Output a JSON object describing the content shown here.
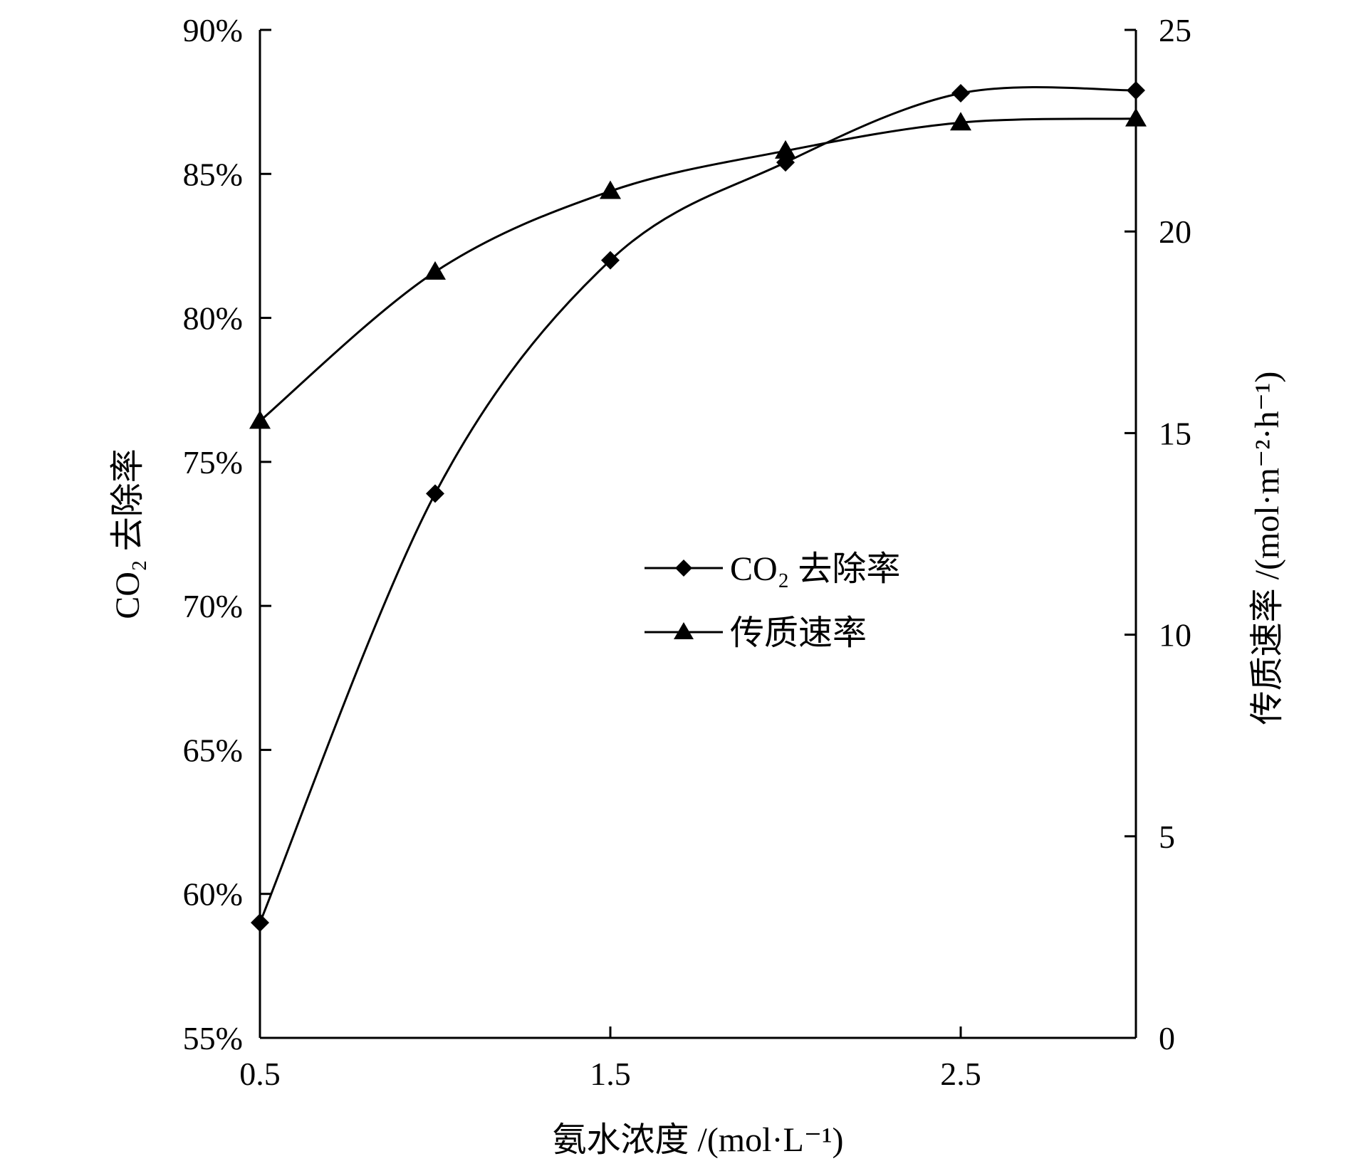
{
  "chart_data": {
    "type": "line",
    "x": [
      0.5,
      1.0,
      1.5,
      2.0,
      2.5,
      3.0
    ],
    "xlim": [
      0.5,
      3.0
    ],
    "x_ticks": [
      "0.5",
      "1.5",
      "2.5"
    ],
    "x_tick_values": [
      0.5,
      1.5,
      2.5
    ],
    "xlabel": "氨水浓度 /(mol·L⁻¹)",
    "ylabel_left": "CO₂ 去除率",
    "ylabel_right": "传质速率 /(mol·m⁻²·h⁻¹)",
    "ylim_left": [
      55,
      90
    ],
    "ylim_right": [
      0,
      25
    ],
    "y_ticks_left": [
      "55%",
      "60%",
      "65%",
      "70%",
      "75%",
      "80%",
      "85%",
      "90%"
    ],
    "y_tick_values_left": [
      55,
      60,
      65,
      70,
      75,
      80,
      85,
      90
    ],
    "y_ticks_right": [
      "0",
      "5",
      "10",
      "15",
      "20",
      "25"
    ],
    "y_tick_values_right": [
      0,
      5,
      10,
      15,
      20,
      25
    ],
    "grid": false,
    "legend_position": "center-right",
    "series": [
      {
        "name": "CO₂ 去除率",
        "axis": "left",
        "marker": "diamond",
        "values": [
          59.0,
          73.9,
          82.0,
          85.4,
          87.8,
          87.9
        ]
      },
      {
        "name": "传质速率",
        "axis": "right",
        "marker": "triangle",
        "values": [
          15.3,
          19.0,
          21.0,
          22.0,
          22.7,
          22.8
        ]
      }
    ]
  }
}
